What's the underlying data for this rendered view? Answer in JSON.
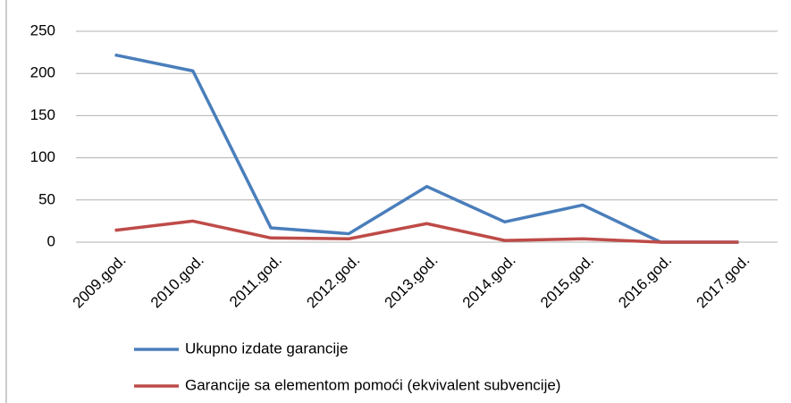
{
  "chart_data": {
    "type": "line",
    "categories": [
      "2009.god.",
      "2010.god.",
      "2011.god.",
      "2012.god.",
      "2013.god.",
      "2014.god.",
      "2015.god.",
      "2016.god.",
      "2017.god."
    ],
    "series": [
      {
        "name": "Ukupno izdate garancije",
        "color": "#4a7ebb",
        "values": [
          222,
          203,
          17,
          10,
          66,
          24,
          44,
          0,
          0
        ]
      },
      {
        "name": "Garancije sa elementom pomoći (ekvivalent subvencije)",
        "color": "#be4b48",
        "values": [
          14,
          25,
          5,
          4,
          22,
          2,
          4,
          0,
          0
        ]
      }
    ],
    "ylim": [
      0,
      250
    ],
    "yticks": [
      0,
      50,
      100,
      150,
      200,
      250
    ],
    "grid": true,
    "legend": "bottom"
  }
}
